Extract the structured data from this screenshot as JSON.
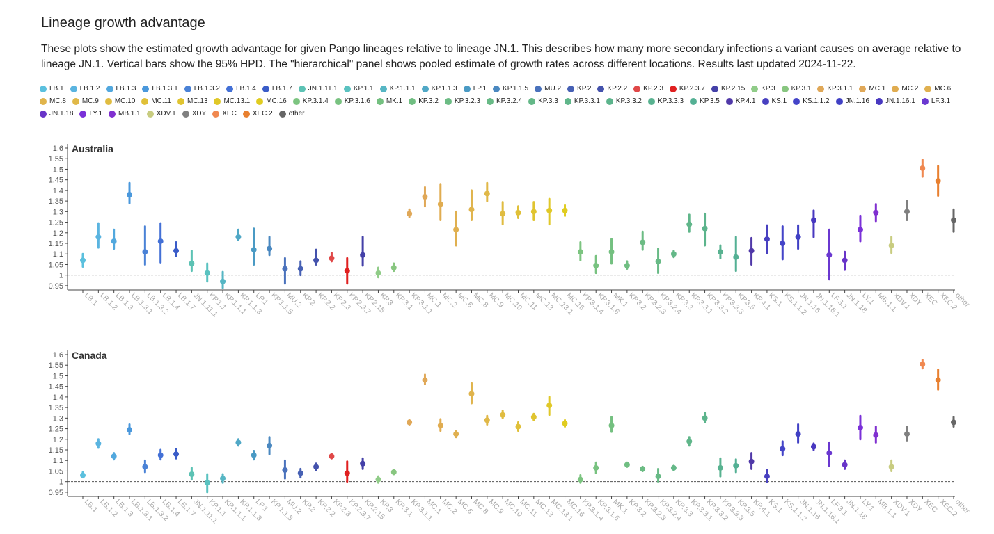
{
  "page": {
    "title": "Lineage growth advantage",
    "description": "These plots show the estimated growth advantage for given Pango lineages relative to lineage JN.1. This describes how many more secondary infections a variant causes on average relative to lineage JN.1. Vertical bars show the 95% HPD. The \"hierarchical\" panel shows pooled estimate of growth rates across different locations. Results last updated 2024-11-22."
  },
  "legend": [
    {
      "label": "LB.1",
      "color": "#5bc0de"
    },
    {
      "label": "LB.1.2",
      "color": "#5ab4e0"
    },
    {
      "label": "LB.1.3",
      "color": "#52a8de"
    },
    {
      "label": "LB.1.3.1",
      "color": "#4a98dc"
    },
    {
      "label": "LB.1.3.2",
      "color": "#4a82d6"
    },
    {
      "label": "LB.1.4",
      "color": "#4370d6"
    },
    {
      "label": "LB.1.7",
      "color": "#3a5cc8"
    },
    {
      "label": "JN.1.11.1",
      "color": "#5cc2b4"
    },
    {
      "label": "KP.1.1",
      "color": "#5ac2c0"
    },
    {
      "label": "KP.1.1.1",
      "color": "#56b6c4"
    },
    {
      "label": "KP.1.1.3",
      "color": "#50a8c6"
    },
    {
      "label": "LP.1",
      "color": "#4a9ac4"
    },
    {
      "label": "KP.1.1.5",
      "color": "#4a88c0"
    },
    {
      "label": "MU.2",
      "color": "#4a72bc"
    },
    {
      "label": "KP.2",
      "color": "#4660b4"
    },
    {
      "label": "KP.2.2",
      "color": "#4452ac"
    },
    {
      "label": "KP.2.3",
      "color": "#e04848"
    },
    {
      "label": "KP.2.3.7",
      "color": "#e02020"
    },
    {
      "label": "KP.2.15",
      "color": "#4440a8"
    },
    {
      "label": "KP.3",
      "color": "#90cc88"
    },
    {
      "label": "KP.3.1",
      "color": "#88c680"
    },
    {
      "label": "KP.3.1.1",
      "color": "#e0a858"
    },
    {
      "label": "MC.1",
      "color": "#e0a858"
    },
    {
      "label": "MC.2",
      "color": "#e0ac50"
    },
    {
      "label": "MC.6",
      "color": "#e0b050"
    },
    {
      "label": "MC.8",
      "color": "#e0b44c"
    },
    {
      "label": "MC.9",
      "color": "#e0b848"
    },
    {
      "label": "MC.10",
      "color": "#e0bc40"
    },
    {
      "label": "MC.11",
      "color": "#e0c038"
    },
    {
      "label": "MC.13",
      "color": "#e0c430"
    },
    {
      "label": "MC.13.1",
      "color": "#e0c828"
    },
    {
      "label": "MC.16",
      "color": "#e0cc20"
    },
    {
      "label": "KP.3.1.4",
      "color": "#7cc480"
    },
    {
      "label": "KP.3.1.6",
      "color": "#78c280"
    },
    {
      "label": "MK.1",
      "color": "#74c080"
    },
    {
      "label": "KP.3.2",
      "color": "#70be82"
    },
    {
      "label": "KP.3.2.3",
      "color": "#6cbc84"
    },
    {
      "label": "KP.3.2.4",
      "color": "#68ba86"
    },
    {
      "label": "KP.3.3",
      "color": "#64b888"
    },
    {
      "label": "KP.3.3.1",
      "color": "#60b68a"
    },
    {
      "label": "KP.3.3.2",
      "color": "#5cb48c"
    },
    {
      "label": "KP.3.3.3",
      "color": "#58b290"
    },
    {
      "label": "KP.3.5",
      "color": "#54b094"
    },
    {
      "label": "KP.4.1",
      "color": "#5038a8"
    },
    {
      "label": "KS.1",
      "color": "#4840c0"
    },
    {
      "label": "KS.1.1.2",
      "color": "#4444c8"
    },
    {
      "label": "JN.1.16",
      "color": "#4040c4"
    },
    {
      "label": "JN.1.16.1",
      "color": "#4838c0"
    },
    {
      "label": "LF.3.1",
      "color": "#6a38d0"
    },
    {
      "label": "JN.1.18",
      "color": "#6834c8"
    },
    {
      "label": "LY.1",
      "color": "#7a30d8"
    },
    {
      "label": "MB.1.1",
      "color": "#8030d0"
    },
    {
      "label": "XDV.1",
      "color": "#c8cc80"
    },
    {
      "label": "XDY",
      "color": "#808080"
    },
    {
      "label": "XEC",
      "color": "#f08850"
    },
    {
      "label": "XEC.2",
      "color": "#e88030"
    },
    {
      "label": "other",
      "color": "#666666"
    }
  ],
  "chart_data": [
    {
      "type": "scatter",
      "title": "Australia",
      "ylim": [
        0.93,
        1.6
      ],
      "yticks": [
        "0.95",
        "1",
        "1.05",
        "1.1",
        "1.15",
        "1.2",
        "1.25",
        "1.3",
        "1.35",
        "1.4",
        "1.45",
        "1.5",
        "1.55",
        "1.6"
      ],
      "reference_line": 1,
      "categories": [
        "LB.1",
        "LB.1.2",
        "LB.1.3",
        "LB.1.3.1",
        "LB.1.3.2",
        "LB.1.4",
        "LB.1.7",
        "JN.1.11.1",
        "KP.1.1",
        "KP.1.1.1",
        "KP.1.1.3",
        "LP.1",
        "KP.1.1.5",
        "MU.2",
        "KP.2",
        "KP.2.2",
        "KP.2.3",
        "KP.2.3.7",
        "KP.2.15",
        "KP.3",
        "KP.3.1",
        "KP.3.1.1",
        "MC.1",
        "MC.2",
        "MC.6",
        "MC.8",
        "MC.9",
        "MC.10",
        "MC.11",
        "MC.13",
        "MC.13.1",
        "MC.16",
        "KP.3.1.4",
        "KP.3.1.6",
        "MK.1",
        "KP.3.2",
        "KP.3.2.3",
        "KP.3.2.4",
        "KP.3.3",
        "KP.3.3.1",
        "KP.3.3.2",
        "KP.3.3.3",
        "KP.3.5",
        "KP.4.1",
        "KS.1",
        "KS.1.1.2",
        "JN.1.16",
        "JN.1.16.1",
        "LF.3.1",
        "JN.1.18",
        "LY.1",
        "MB.1.1",
        "XDV.1",
        "XDY",
        "XEC",
        "XEC.2",
        "other"
      ],
      "values": [
        1.07,
        1.18,
        1.16,
        1.38,
        1.11,
        1.16,
        1.115,
        1.055,
        1.01,
        0.97,
        1.18,
        1.12,
        1.125,
        1.03,
        1.03,
        1.07,
        1.08,
        1.02,
        1.095,
        1.01,
        1.035,
        1.29,
        1.37,
        1.335,
        1.215,
        1.31,
        1.385,
        1.29,
        1.295,
        1.3,
        1.305,
        1.305,
        1.11,
        1.045,
        1.11,
        1.045,
        1.155,
        1.065,
        1.1,
        1.24,
        1.22,
        1.11,
        1.085,
        1.115,
        1.17,
        1.15,
        1.18,
        1.26,
        1.095,
        1.07,
        1.215,
        1.295,
        1.14,
        1.3,
        1.505,
        1.445,
        1.26
      ],
      "lower": [
        1.04,
        1.13,
        1.125,
        1.34,
        1.05,
        1.06,
        1.09,
        1.02,
        0.97,
        0.94,
        1.165,
        1.05,
        1.095,
        0.96,
        1.0,
        1.05,
        1.065,
        0.96,
        1.045,
        0.99,
        1.02,
        1.275,
        1.325,
        1.26,
        1.14,
        1.26,
        1.35,
        1.24,
        1.27,
        1.26,
        1.24,
        1.28,
        1.07,
        1.01,
        1.055,
        1.03,
        1.12,
        1.01,
        1.085,
        1.205,
        1.14,
        1.08,
        1.02,
        1.05,
        1.105,
        1.075,
        1.125,
        1.18,
        0.98,
        1.025,
        1.16,
        1.255,
        1.105,
        1.26,
        1.465,
        1.375,
        1.205
      ],
      "upper": [
        1.1,
        1.245,
        1.215,
        1.435,
        1.23,
        1.245,
        1.155,
        1.115,
        1.055,
        1.015,
        1.215,
        1.22,
        1.18,
        1.08,
        1.065,
        1.12,
        1.105,
        1.08,
        1.18,
        1.035,
        1.055,
        1.31,
        1.415,
        1.43,
        1.3,
        1.4,
        1.435,
        1.345,
        1.325,
        1.345,
        1.36,
        1.33,
        1.155,
        1.09,
        1.17,
        1.065,
        1.205,
        1.125,
        1.115,
        1.285,
        1.29,
        1.14,
        1.18,
        1.175,
        1.235,
        1.23,
        1.235,
        1.305,
        1.215,
        1.11,
        1.28,
        1.335,
        1.18,
        1.35,
        1.545,
        1.515,
        1.31
      ]
    },
    {
      "type": "scatter",
      "title": "Canada",
      "ylim": [
        0.93,
        1.6
      ],
      "yticks": [
        "0.95",
        "1",
        "1.05",
        "1.1",
        "1.15",
        "1.2",
        "1.25",
        "1.3",
        "1.35",
        "1.4",
        "1.45",
        "1.5",
        "1.55",
        "1.6"
      ],
      "reference_line": 1,
      "categories": [
        "LB.1",
        "LB.1.2",
        "LB.1.3",
        "LB.1.3.1",
        "LB.1.3.2",
        "LB.1.4",
        "LB.1.7",
        "JN.1.11.1",
        "KP.1.1",
        "KP.1.1.1",
        "KP.1.1.3",
        "LP.1",
        "KP.1.1.5",
        "MU.2",
        "KP.2",
        "KP.2.2",
        "KP.2.3",
        "KP.2.3.7",
        "KP.2.15",
        "KP.3",
        "KP.3.1",
        "KP.3.1.1",
        "MC.1",
        "MC.2",
        "MC.6",
        "MC.8",
        "MC.9",
        "MC.10",
        "MC.11",
        "MC.13",
        "MC.13.1",
        "MC.16",
        "KP.3.1.4",
        "KP.3.1.6",
        "MK.1",
        "KP.3.2",
        "KP.3.2.3",
        "KP.3.2.4",
        "KP.3.3",
        "KP.3.3.1",
        "KP.3.3.2",
        "KP.3.3.3",
        "KP.3.5",
        "KP.4.1",
        "KS.1",
        "KS.1.1.2",
        "JN.1.16",
        "JN.1.16.1",
        "LF.3.1",
        "JN.1.18",
        "LY.1",
        "MB.1.1",
        "XDV.1",
        "XDY",
        "XEC",
        "XEC.2",
        "other"
      ],
      "values": [
        1.03,
        1.18,
        1.12,
        1.245,
        1.07,
        1.125,
        1.13,
        1.035,
        0.995,
        1.015,
        1.185,
        1.125,
        1.17,
        1.055,
        1.04,
        1.07,
        1.12,
        1.04,
        1.085,
        1.01,
        1.045,
        1.28,
        1.48,
        1.265,
        1.225,
        1.415,
        1.29,
        1.315,
        1.26,
        1.305,
        1.36,
        1.275,
        1.01,
        1.065,
        1.265,
        1.08,
        1.06,
        1.025,
        1.065,
        1.19,
        1.3,
        1.065,
        1.075,
        1.095,
        1.025,
        1.155,
        1.225,
        1.165,
        1.135,
        1.08,
        1.255,
        1.22,
        1.07,
        1.225,
        1.555,
        1.48,
        1.28
      ],
      "lower": [
        1.02,
        1.16,
        1.105,
        1.225,
        1.045,
        1.105,
        1.11,
        1.01,
        0.95,
        0.995,
        1.17,
        1.105,
        1.13,
        1.015,
        1.02,
        1.055,
        1.11,
        1.0,
        1.06,
        0.995,
        1.035,
        1.27,
        1.46,
        1.24,
        1.21,
        1.37,
        1.27,
        1.3,
        1.24,
        1.29,
        1.315,
        1.26,
        0.995,
        1.04,
        1.235,
        1.07,
        1.05,
        1.0,
        1.055,
        1.17,
        1.28,
        1.025,
        1.045,
        1.06,
        1.0,
        1.125,
        1.185,
        1.15,
        1.075,
        1.06,
        1.2,
        1.185,
        1.05,
        1.195,
        1.535,
        1.435,
        1.26
      ],
      "upper": [
        1.045,
        1.2,
        1.135,
        1.27,
        1.1,
        1.15,
        1.155,
        1.065,
        1.035,
        1.035,
        1.2,
        1.145,
        1.21,
        1.1,
        1.06,
        1.085,
        1.13,
        1.095,
        1.11,
        1.025,
        1.055,
        1.29,
        1.505,
        1.295,
        1.24,
        1.465,
        1.31,
        1.335,
        1.28,
        1.32,
        1.4,
        1.29,
        1.03,
        1.09,
        1.305,
        1.09,
        1.07,
        1.06,
        1.075,
        1.21,
        1.325,
        1.11,
        1.105,
        1.135,
        1.055,
        1.19,
        1.27,
        1.18,
        1.185,
        1.1,
        1.31,
        1.26,
        1.1,
        1.26,
        1.575,
        1.53,
        1.305
      ]
    }
  ]
}
